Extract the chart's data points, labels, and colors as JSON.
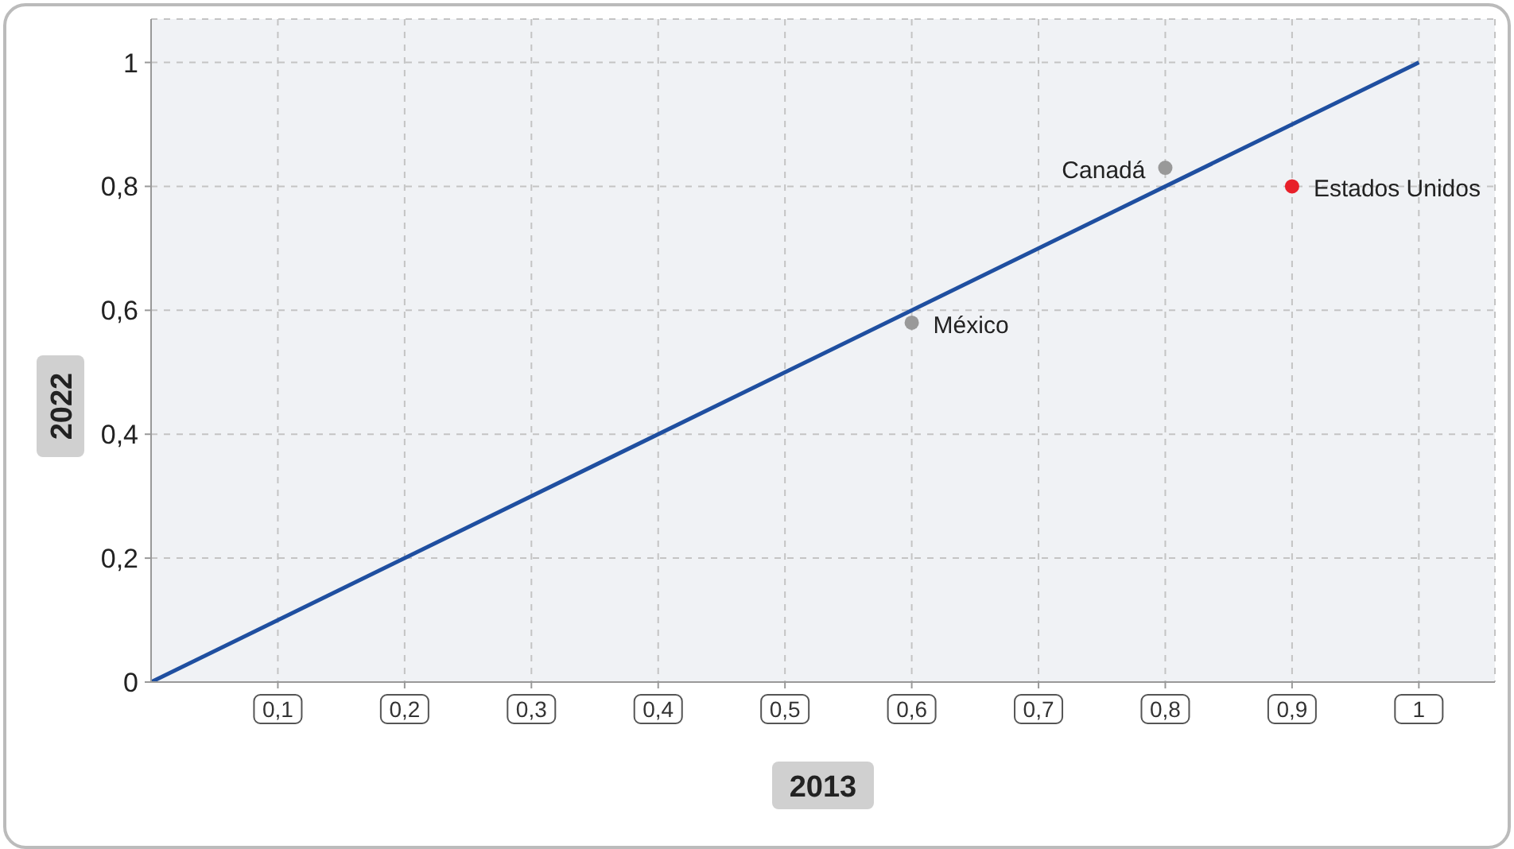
{
  "chart_data": {
    "type": "scatter",
    "xlabel": "2013",
    "ylabel": "2022",
    "xlim": [
      0,
      1.06
    ],
    "ylim": [
      0,
      1.07
    ],
    "xticks": [
      {
        "value": 0.1,
        "label": "0,1"
      },
      {
        "value": 0.2,
        "label": "0,2"
      },
      {
        "value": 0.3,
        "label": "0,3"
      },
      {
        "value": 0.4,
        "label": "0,4"
      },
      {
        "value": 0.5,
        "label": "0,5"
      },
      {
        "value": 0.6,
        "label": "0,6"
      },
      {
        "value": 0.7,
        "label": "0,7"
      },
      {
        "value": 0.8,
        "label": "0,8"
      },
      {
        "value": 0.9,
        "label": "0,9"
      },
      {
        "value": 1,
        "label": "1"
      }
    ],
    "yticks": [
      0,
      {
        "value": 0.2,
        "label": "0,2"
      },
      {
        "value": 0.4,
        "label": "0,4"
      },
      {
        "value": 0.6,
        "label": "0,6"
      },
      {
        "value": 0.8,
        "label": "0,8"
      },
      1
    ],
    "grid": true,
    "legend": false,
    "marker": "circle",
    "series": [
      {
        "type": "line",
        "marker": "none",
        "color": "#1f4fa0",
        "x": [
          0,
          1
        ],
        "values": [
          0,
          1
        ]
      },
      {
        "name": "Canadá",
        "color": "#999999",
        "x": [
          0.8
        ],
        "values": [
          0.83
        ]
      },
      {
        "name": "Estados Unidos",
        "color": "#e8202a",
        "x": [
          0.9
        ],
        "values": [
          0.8
        ]
      },
      {
        "name": "México",
        "color": "#999999",
        "x": [
          0.6
        ],
        "values": [
          0.58
        ]
      }
    ]
  }
}
